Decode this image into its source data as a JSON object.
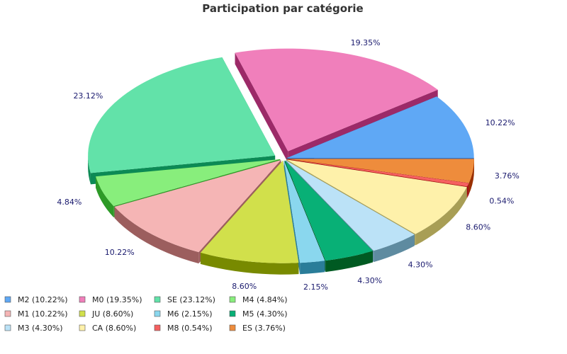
{
  "chart_data": {
    "type": "pie",
    "title": "Participation par catégorie",
    "categories": [
      "M2",
      "M0",
      "SE",
      "M4",
      "M1",
      "JU",
      "M6",
      "M5",
      "M3",
      "CA",
      "M8",
      "ES"
    ],
    "values": [
      10.22,
      19.35,
      23.12,
      4.84,
      10.22,
      8.6,
      2.15,
      4.3,
      4.3,
      8.6,
      0.54,
      3.76
    ],
    "labels": [
      "10.22%",
      "19.35%",
      "23.12%",
      "4.84%",
      "10.22%",
      "8.60%",
      "2.15%",
      "4.30%",
      "4.30%",
      "8.60%",
      "0.54%",
      "3.76%"
    ],
    "legend": [
      "M2 (10.22%)",
      "M0 (19.35%)",
      "SE (23.12%)",
      "M4 (4.84%)",
      "M1 (10.22%)",
      "JU (8.60%)",
      "M6 (2.15%)",
      "M5 (4.30%)",
      "M3 (4.30%)",
      "CA (8.60%)",
      "M8 (0.54%)",
      "ES (3.76%)"
    ],
    "colors": [
      "#5fa8f5",
      "#f07fbb",
      "#62e2a9",
      "#88ee7c",
      "#f5b5b5",
      "#d1e04b",
      "#8ad7ee",
      "#08b076",
      "#bbe2f7",
      "#fef1aa",
      "#f56060",
      "#ee8c3c"
    ],
    "side_colors": [
      "#1e5fb4",
      "#9c2a68",
      "#0c8a55",
      "#2d9a27",
      "#9c5e5e",
      "#788a00",
      "#2a7d99",
      "#005a22",
      "#5e8ba0",
      "#a89e55",
      "#a00d0d",
      "#9a3000"
    ],
    "legend_position": "bottom-left",
    "style": "3d-exploded"
  }
}
